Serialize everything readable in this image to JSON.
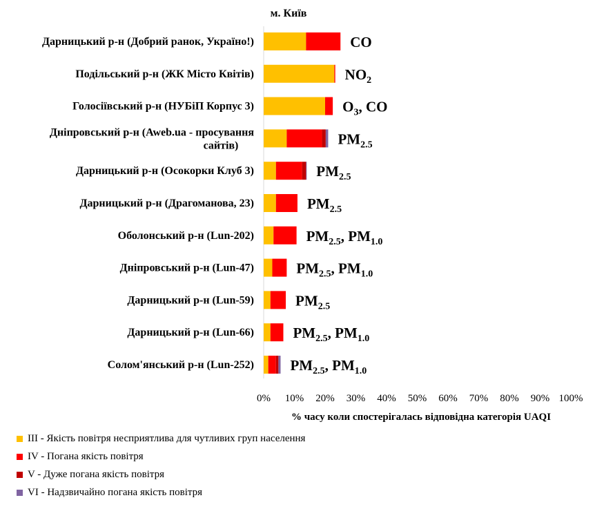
{
  "chart_data": {
    "type": "bar",
    "orientation": "horizontal",
    "stacked": true,
    "title": "м. Київ",
    "xlabel": "% часу коли спостерігалась відповідна категорія UAQI",
    "ylabel": "",
    "xlim": [
      0,
      100
    ],
    "x_ticks": [
      "0%",
      "10%",
      "20%",
      "30%",
      "40%",
      "50%",
      "60%",
      "70%",
      "80%",
      "90%",
      "100%"
    ],
    "grid": false,
    "legend_position": "bottom",
    "categories": [
      "Дарницький р-н (Добрий ранок, Україно!)",
      "Подільський р-н (ЖК Місто Квітів)",
      "Голосіївський р-н (НУБіП Корпус 3)",
      "Дніпровський р-н (Aweb.ua - просування сайтів)",
      "Дарницький р-н (Осокорки Клуб 3)",
      "Дарницький р-н (Драгоманова, 23)",
      "Оболонський р-н (Lun-202)",
      "Дніпровський р-н (Lun-47)",
      "Дарницький р-н (Lun-59)",
      "Дарницький р-н (Lun-66)",
      "Солом'янський р-н (Lun-252)"
    ],
    "series": [
      {
        "name": "III - Якість повітря несприятлива для чутливих груп населення",
        "color": "#FFC000",
        "values": [
          13.8,
          23.0,
          20.0,
          7.5,
          4.0,
          4.0,
          3.2,
          2.8,
          2.2,
          2.2,
          1.5
        ]
      },
      {
        "name": "IV - Погана якість повітря",
        "color": "#FF0000",
        "values": [
          11.2,
          0.3,
          2.5,
          11.5,
          8.5,
          7.0,
          7.5,
          4.7,
          5.0,
          4.2,
          2.5
        ]
      },
      {
        "name": "V - Дуже погана якість повітря",
        "color": "#C00000",
        "values": [
          0,
          0,
          0,
          1.2,
          1.3,
          0,
          0,
          0,
          0,
          0,
          0.8
        ]
      },
      {
        "name": "VI - Надзвичайно погана якість повітря",
        "color": "#8064A2",
        "values": [
          0,
          0,
          0,
          0.8,
          0.2,
          0,
          0,
          0,
          0,
          0,
          0.7
        ]
      }
    ],
    "annotations": [
      {
        "text": "CO",
        "sub": []
      },
      {
        "text": "NO",
        "sub": [
          "2"
        ]
      },
      {
        "text": "O",
        "sub": [
          "3"
        ],
        "after": ", CO"
      },
      {
        "text": "PM",
        "sub": [
          "2.5"
        ]
      },
      {
        "text": "PM",
        "sub": [
          "2.5"
        ]
      },
      {
        "text": "PM",
        "sub": [
          "2.5"
        ]
      },
      {
        "text": "PM",
        "sub": [
          "2.5"
        ],
        "after": ", PM",
        "sub2": [
          "1.0"
        ]
      },
      {
        "text": "PM",
        "sub": [
          "2.5"
        ],
        "after": ", PM",
        "sub2": [
          "1.0"
        ]
      },
      {
        "text": "PM",
        "sub": [
          "2.5"
        ]
      },
      {
        "text": "PM",
        "sub": [
          "2.5"
        ],
        "after": ", PM",
        "sub2": [
          "1.0"
        ]
      },
      {
        "text": "PM",
        "sub": [
          "2.5"
        ],
        "after": ", PM",
        "sub2": [
          "1.0"
        ]
      }
    ]
  }
}
